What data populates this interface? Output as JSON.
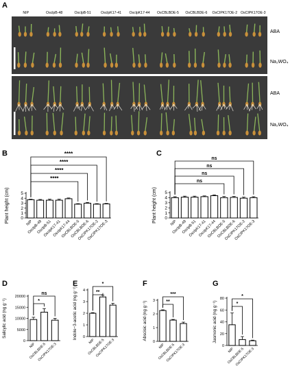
{
  "panel_labels": [
    "A",
    "B",
    "C",
    "D",
    "E",
    "F",
    "G"
  ],
  "photo": {
    "genotypes": [
      "NIP",
      "OsclpB-48",
      "OsclpB-51",
      "OsclpK17-41",
      "OsclpK17-44",
      "OsCBLBDE-5",
      "OsCBLBDE-6",
      "OsCIPK17OE-2",
      "OsCIPK17OE-3"
    ],
    "row_labels": [
      "ABA",
      "Na₂WO₄",
      "ABA",
      "Na₂WO₄"
    ],
    "colors": {
      "background": "#3a3a3a",
      "seed": "#c9903a",
      "shoot": "#8cb65a",
      "root": "#e8e4dc"
    }
  },
  "chart_data": [
    {
      "type": "bar",
      "panel": "B",
      "categories": [
        "NIP",
        "OsclpB-48",
        "OsclpB-51",
        "OsclpK17-41",
        "OsclpK17-44",
        "OsCBLBDE-5",
        "OsCBLBDE-6",
        "OsCIPK17OE-2",
        "OsCIPK17OE-3"
      ],
      "values": [
        3.7,
        3.6,
        3.6,
        3.6,
        3.9,
        2.8,
        3.0,
        2.8,
        2.85
      ],
      "errors": [
        0.1,
        0.15,
        0.2,
        0.2,
        0.15,
        0.1,
        0.15,
        0.1,
        0.1
      ],
      "ylabel": "Plant height (cm)",
      "ylim": [
        0,
        5
      ],
      "yticks": [
        0,
        1,
        2,
        3,
        4,
        5
      ],
      "comparisons": [
        {
          "from": 0,
          "to": 5,
          "label": "****"
        },
        {
          "from": 0,
          "to": 6,
          "label": "****"
        },
        {
          "from": 0,
          "to": 7,
          "label": "****"
        },
        {
          "from": 0,
          "to": 8,
          "label": "****"
        }
      ]
    },
    {
      "type": "bar",
      "panel": "C",
      "categories": [
        "NIP",
        "OsclpB-48",
        "OsclpB-51",
        "OsclpK17-41",
        "OsclpK17-44",
        "OsCBLBDE-5",
        "OsCBLBDE-6",
        "OsCIPK17OE-2",
        "OsCIPK17OE-3"
      ],
      "values": [
        4.0,
        4.1,
        4.1,
        4.2,
        4.4,
        4.0,
        4.05,
        3.9,
        4.0
      ],
      "errors": [
        0.2,
        0.2,
        0.2,
        0.15,
        0.15,
        0.25,
        0.2,
        0.2,
        0.2
      ],
      "ylabel": "Plant height (cm)",
      "ylim": [
        0,
        5
      ],
      "yticks": [
        0,
        1,
        2,
        3,
        4,
        5
      ],
      "comparisons": [
        {
          "from": 0,
          "to": 5,
          "label": "ns"
        },
        {
          "from": 0,
          "to": 6,
          "label": "ns"
        },
        {
          "from": 0,
          "to": 7,
          "label": "ns"
        },
        {
          "from": 0,
          "to": 8,
          "label": "ns"
        }
      ]
    },
    {
      "type": "bar",
      "panel": "D",
      "categories": [
        "NIP",
        "OsCBLBDE-5",
        "OsCIPK17OE-3"
      ],
      "values": [
        9500,
        12800,
        9200
      ],
      "errors": [
        1000,
        1600,
        800
      ],
      "ylabel": "Salicylic acid (ng g⁻¹)",
      "ylim": [
        0,
        20000
      ],
      "yticks": [
        0,
        5000,
        10000,
        15000,
        20000
      ],
      "comparisons": [
        {
          "from": 0,
          "to": 1,
          "label": "*"
        },
        {
          "from": 0,
          "to": 2,
          "label": "ns"
        }
      ]
    },
    {
      "type": "bar",
      "panel": "E",
      "categories": [
        "NIP",
        "OsCBLBDE-5",
        "OsCIPK17OE-3"
      ],
      "values": [
        2.0,
        3.4,
        2.7
      ],
      "errors": [
        0.05,
        0.15,
        0.15
      ],
      "ylabel": "Indole−3-acetic acid (ng g⁻¹)",
      "ylim": [
        0,
        4
      ],
      "yticks": [
        0,
        1,
        2,
        3,
        4
      ],
      "comparisons": [
        {
          "from": 0,
          "to": 1,
          "label": "**"
        },
        {
          "from": 0,
          "to": 2,
          "label": "*"
        }
      ]
    },
    {
      "type": "bar",
      "panel": "F",
      "categories": [
        "NIP",
        "OsCBLBDE-5",
        "OsCIPK17OE-3"
      ],
      "values": [
        2.25,
        1.55,
        1.3
      ],
      "errors": [
        0.05,
        0.05,
        0.1
      ],
      "ylabel": "Abscisic acid (ng g⁻¹)",
      "ylim": [
        0,
        3
      ],
      "yticks": [
        0,
        1,
        2,
        3
      ],
      "comparisons": [
        {
          "from": 0,
          "to": 1,
          "label": "**"
        },
        {
          "from": 0,
          "to": 2,
          "label": "***"
        }
      ]
    },
    {
      "type": "bar",
      "panel": "G",
      "categories": [
        "NIP",
        "OsCBLBDE-5",
        "OsCIPK17OE-3"
      ],
      "values": [
        35,
        10,
        8
      ],
      "errors": [
        20,
        5,
        1
      ],
      "ylabel": "Jasmonic acid (ng g⁻¹)",
      "ylim": [
        0,
        80
      ],
      "yticks": [
        0,
        20,
        40,
        60,
        80
      ],
      "comparisons": [
        {
          "from": 0,
          "to": 1,
          "label": "*"
        },
        {
          "from": 0,
          "to": 2,
          "label": "*"
        }
      ]
    }
  ]
}
